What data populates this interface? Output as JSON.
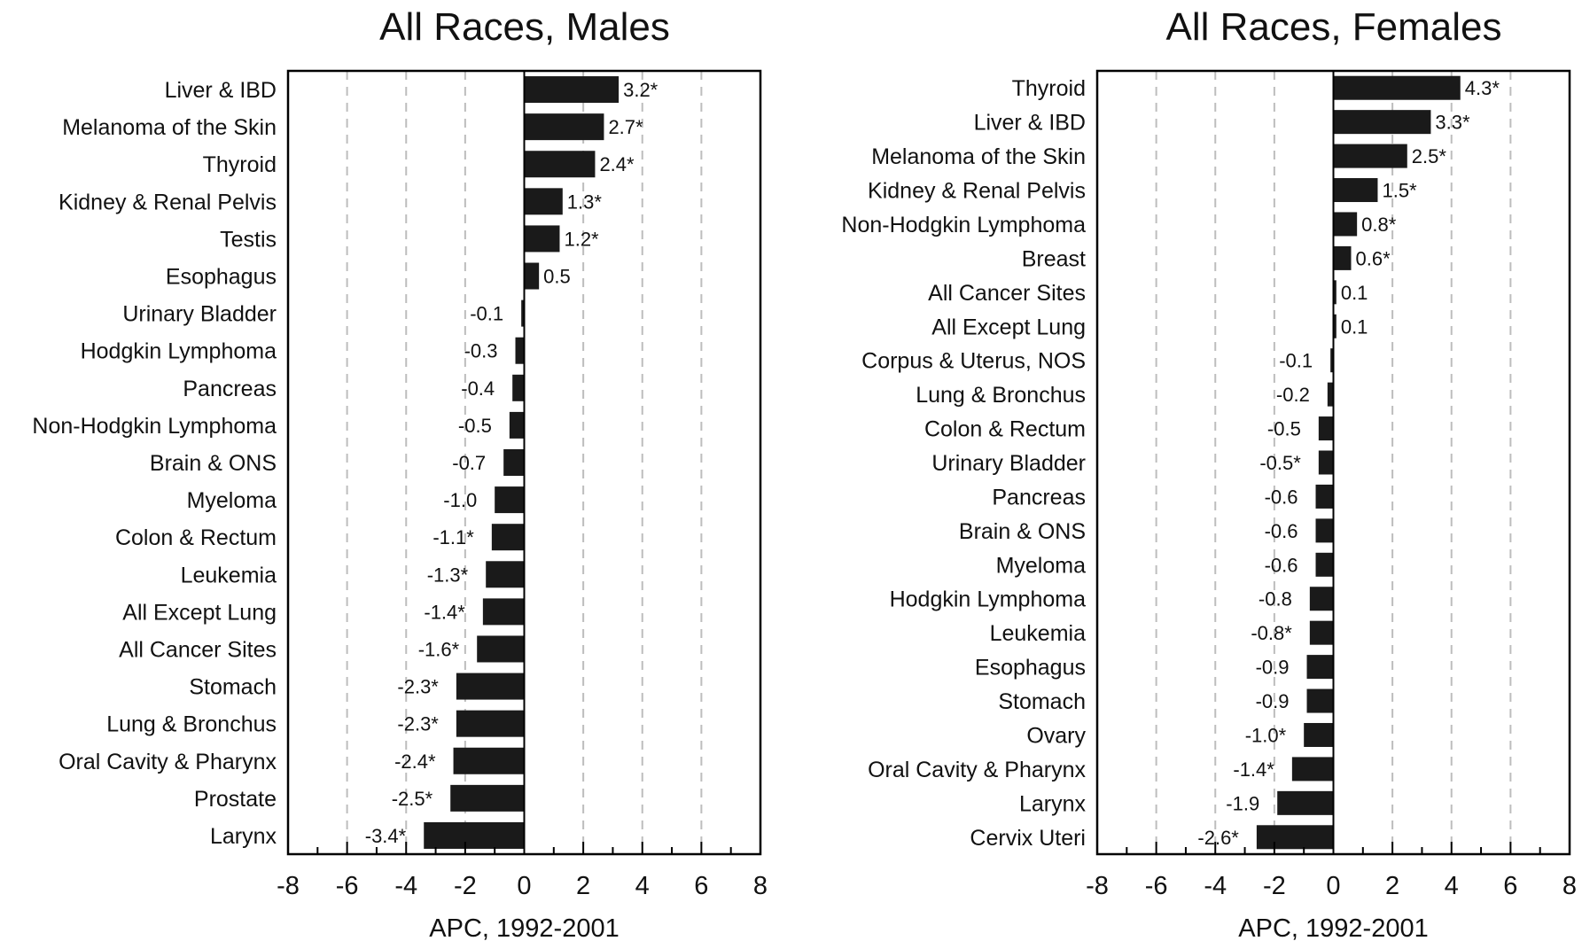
{
  "colors": {
    "bar": "#1a1a1a",
    "grid": "#bdbdbd",
    "axis": "#000000",
    "text": "#111111"
  },
  "chart_data": [
    {
      "type": "bar",
      "orientation": "horizontal",
      "title": "All Races, Males",
      "xlabel": "APC, 1992-2001",
      "xlim": [
        -8,
        8
      ],
      "xticks": [
        "-8",
        "-6",
        "-4",
        "-2",
        "0",
        "2",
        "4",
        "6",
        "8"
      ],
      "grid": "vertical dashed",
      "categories": [
        "Liver & IBD",
        "Melanoma of the Skin",
        "Thyroid",
        "Kidney & Renal Pelvis",
        "Testis",
        "Esophagus",
        "Urinary Bladder",
        "Hodgkin Lymphoma",
        "Pancreas",
        "Non-Hodgkin Lymphoma",
        "Brain & ONS",
        "Myeloma",
        "Colon & Rectum",
        "Leukemia",
        "All Except Lung",
        "All Cancer Sites",
        "Stomach",
        "Lung & Bronchus",
        "Oral Cavity & Pharynx",
        "Prostate",
        "Larynx"
      ],
      "values": [
        3.2,
        2.7,
        2.4,
        1.3,
        1.2,
        0.5,
        -0.1,
        -0.3,
        -0.4,
        -0.5,
        -0.7,
        -1.0,
        -1.1,
        -1.3,
        -1.4,
        -1.6,
        -2.3,
        -2.3,
        -2.4,
        -2.5,
        -3.4
      ],
      "labels": [
        "3.2*",
        "2.7*",
        "2.4*",
        "1.3*",
        "1.2*",
        "0.5",
        "-0.1",
        "-0.3",
        "-0.4",
        "-0.5",
        "-0.7",
        "-1.0",
        "-1.1*",
        "-1.3*",
        "-1.4*",
        "-1.6*",
        "-2.3*",
        "-2.3*",
        "-2.4*",
        "-2.5*",
        "-3.4*"
      ]
    },
    {
      "type": "bar",
      "orientation": "horizontal",
      "title": "All Races, Females",
      "xlabel": "APC, 1992-2001",
      "xlim": [
        -8,
        8
      ],
      "xticks": [
        "-8",
        "-6",
        "-4",
        "-2",
        "0",
        "2",
        "4",
        "6",
        "8"
      ],
      "grid": "vertical dashed",
      "categories": [
        "Thyroid",
        "Liver & IBD",
        "Melanoma of the Skin",
        "Kidney & Renal Pelvis",
        "Non-Hodgkin Lymphoma",
        "Breast",
        "All Cancer Sites",
        "All Except Lung",
        "Corpus & Uterus, NOS",
        "Lung & Bronchus",
        "Colon & Rectum",
        "Urinary Bladder",
        "Pancreas",
        "Brain & ONS",
        "Myeloma",
        "Hodgkin Lymphoma",
        "Leukemia",
        "Esophagus",
        "Stomach",
        "Ovary",
        "Oral Cavity & Pharynx",
        "Larynx",
        "Cervix Uteri"
      ],
      "values": [
        4.3,
        3.3,
        2.5,
        1.5,
        0.8,
        0.6,
        0.1,
        0.1,
        -0.1,
        -0.2,
        -0.5,
        -0.5,
        -0.6,
        -0.6,
        -0.6,
        -0.8,
        -0.8,
        -0.9,
        -0.9,
        -1.0,
        -1.4,
        -1.9,
        -2.6
      ],
      "labels": [
        "4.3*",
        "3.3*",
        "2.5*",
        "1.5*",
        "0.8*",
        "0.6*",
        "0.1",
        "0.1",
        "-0.1",
        "-0.2",
        "-0.5",
        "-0.5*",
        "-0.6",
        "-0.6",
        "-0.6",
        "-0.8",
        "-0.8*",
        "-0.9",
        "-0.9",
        "-1.0*",
        "-1.4*",
        "-1.9",
        "-2.6*"
      ]
    }
  ]
}
